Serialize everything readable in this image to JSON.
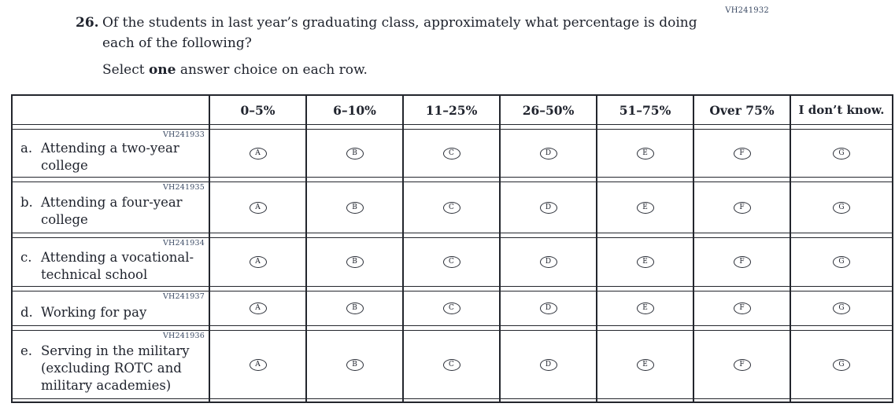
{
  "page": {
    "accession_code": "VH241932"
  },
  "question": {
    "number": "26.",
    "text": "Of the students in last year’s graduating class, approximately what percentage is doing each of the following?",
    "instruction": {
      "prefix": "Select ",
      "bold": "one",
      "suffix": " answer choice on each row."
    }
  },
  "table": {
    "column_headers": [
      "0–5%",
      "6–10%",
      "11–25%",
      "26–50%",
      "51–75%",
      "Over 75%",
      "I don’t know."
    ],
    "choice_letters": [
      "A",
      "B",
      "C",
      "D",
      "E",
      "F",
      "G"
    ],
    "rows": [
      {
        "code": "VH241933",
        "letter": "a.",
        "label": "Attending a two-year college"
      },
      {
        "code": "VH241935",
        "letter": "b.",
        "label": "Attending a four-year college"
      },
      {
        "code": "VH241934",
        "letter": "c.",
        "label": "Attending a vocational-technical school"
      },
      {
        "code": "VH241937",
        "letter": "d.",
        "label": "Working for pay"
      },
      {
        "code": "VH241936",
        "letter": "e.",
        "label": "Serving in the military (excluding ROTC and military academies)"
      }
    ]
  }
}
